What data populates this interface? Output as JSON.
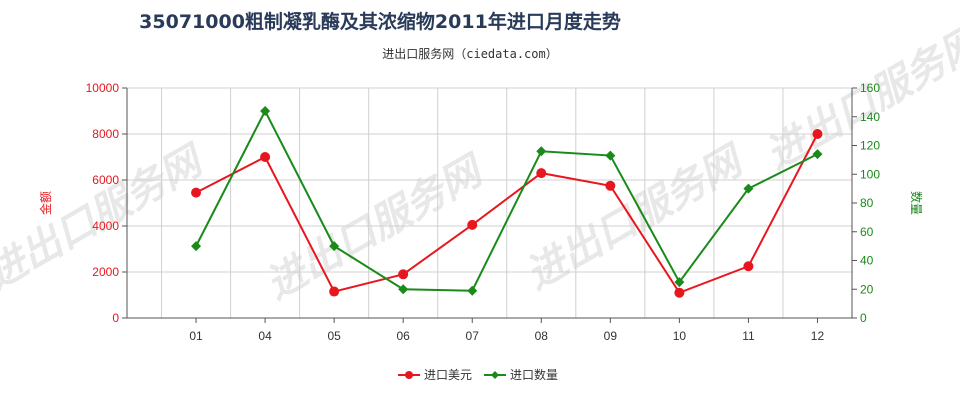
{
  "chart_data": {
    "type": "line",
    "title": "35071000粗制凝乳酶及其浓缩物2011年进口月度走势",
    "subtitle": "进出口服务网（ciedata.com）",
    "watermark": "进出口服务网",
    "categories": [
      "01",
      "04",
      "05",
      "06",
      "07",
      "08",
      "09",
      "10",
      "11",
      "12"
    ],
    "left_axis": {
      "label": "金额",
      "ylim": [
        0,
        10000
      ],
      "ticks": [
        "0",
        "2000",
        "4000",
        "6000",
        "8000",
        "10000"
      ],
      "color": "#e8171f"
    },
    "right_axis": {
      "label": "数量",
      "ylim": [
        0,
        160
      ],
      "ticks": [
        "0",
        "20",
        "40",
        "60",
        "80",
        "100",
        "120",
        "140",
        "160"
      ],
      "color": "#1a8a1a"
    },
    "series": [
      {
        "name": "进口美元",
        "axis": "left",
        "color": "#e8171f",
        "marker": "circle",
        "values": [
          5450,
          7000,
          1150,
          1900,
          4050,
          6300,
          5750,
          1100,
          2250,
          8000
        ]
      },
      {
        "name": "进口数量",
        "axis": "right",
        "color": "#1a8a1a",
        "marker": "diamond",
        "values": [
          50,
          144,
          50,
          20,
          19,
          116,
          113,
          25,
          90,
          114
        ]
      }
    ],
    "grid": true,
    "legend": "bottom-center"
  }
}
